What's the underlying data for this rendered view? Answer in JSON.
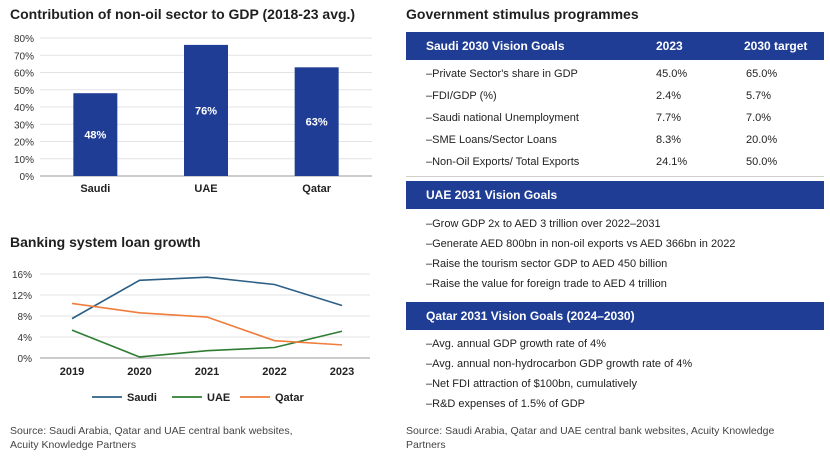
{
  "left": {
    "bar_title": "Contribution of non-oil sector to GDP (2018-23 avg.)",
    "line_title": "Banking system loan growth",
    "source": [
      "Source: Saudi Arabia, Qatar and UAE central bank websites,",
      "Acuity Knowledge Partners"
    ]
  },
  "right": {
    "title": "Government stimulus programmes",
    "saudi": {
      "header": [
        "Saudi 2030 Vision Goals",
        "2023",
        "2030 target"
      ],
      "rows": [
        [
          "–Private Sector's share in GDP",
          "45.0%",
          "65.0%"
        ],
        [
          "–FDI/GDP (%)",
          "2.4%",
          "5.7%"
        ],
        [
          "–Saudi national Unemployment",
          "7.7%",
          "7.0%"
        ],
        [
          "–SME Loans/Sector Loans",
          "8.3%",
          "20.0%"
        ],
        [
          "–Non-Oil Exports/ Total Exports",
          "24.1%",
          "50.0%"
        ]
      ]
    },
    "uae": {
      "header": "UAE 2031 Vision Goals",
      "items": [
        "–Grow GDP 2x to AED 3 trillion over 2022–2031",
        "–Generate AED 800bn in non-oil exports vs AED 366bn in 2022",
        "–Raise the tourism sector GDP to AED 450 billion",
        "–Raise the value for foreign trade to AED 4 trillion"
      ]
    },
    "qatar": {
      "header": "Qatar 2031 Vision Goals (2024–2030)",
      "items": [
        "–Avg. annual GDP growth rate of 4%",
        "–Avg. annual non-hydrocarbon GDP growth rate of 4%",
        "–Net FDI attraction of $100bn, cumulatively",
        "–R&D expenses of 1.5% of GDP"
      ]
    },
    "source": [
      "Source: Saudi Arabia, Qatar and UAE central bank websites, Acuity Knowledge",
      "Partners"
    ]
  },
  "chart_data": [
    {
      "type": "bar",
      "title": "Contribution of non-oil sector to GDP (2018-23 avg.)",
      "categories": [
        "Saudi",
        "UAE",
        "Qatar"
      ],
      "values": [
        48,
        76,
        63
      ],
      "data_labels": [
        "48%",
        "76%",
        "63%"
      ],
      "yticks": [
        "0%",
        "10%",
        "20%",
        "30%",
        "40%",
        "50%",
        "60%",
        "70%",
        "80%"
      ],
      "ylim": [
        0,
        80
      ],
      "color": "#203d95",
      "grid": true
    },
    {
      "type": "line",
      "title": "Banking system loan growth",
      "x": [
        "2019",
        "2020",
        "2021",
        "2022",
        "2023"
      ],
      "yticks": [
        "0%",
        "4%",
        "8%",
        "12%",
        "16%"
      ],
      "ylim": [
        0,
        16
      ],
      "grid": true,
      "legend": "bottom",
      "series": [
        {
          "name": "Saudi",
          "color": "#2d5f86",
          "values": [
            7.5,
            14.8,
            15.4,
            14.0,
            10.0
          ]
        },
        {
          "name": "UAE",
          "color": "#2e7d32",
          "values": [
            5.3,
            0.2,
            1.4,
            2.0,
            5.1
          ]
        },
        {
          "name": "Qatar",
          "color": "#ef7d3c",
          "values": [
            10.4,
            8.6,
            7.8,
            3.3,
            2.5
          ]
        }
      ]
    }
  ]
}
